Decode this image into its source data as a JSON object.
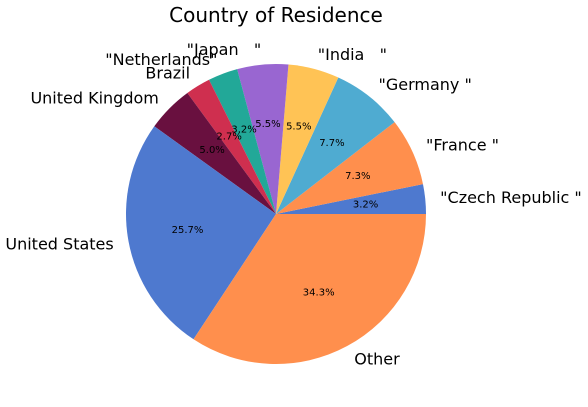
{
  "chart_data": {
    "type": "pie",
    "title": "Country of Residence",
    "start_angle_deg": 0,
    "direction": "counterclockwise",
    "slices": [
      {
        "label": "\"Czech Republic \"",
        "value": 3.2,
        "pct_label": "3.2%",
        "color": "#4e79cf"
      },
      {
        "label": "\"France \"",
        "value": 7.3,
        "pct_label": "7.3%",
        "color": "#ff8f4d"
      },
      {
        "label": "\"Germany \"",
        "value": 7.7,
        "pct_label": "7.7%",
        "color": "#4fabd1"
      },
      {
        "label": "\"India   \"",
        "value": 5.5,
        "pct_label": "5.5%",
        "color": "#ffc355"
      },
      {
        "label": "\"Japan   \"",
        "value": 5.5,
        "pct_label": "5.5%",
        "color": "#9966d1"
      },
      {
        "label": "\"Netherlands\"",
        "value": 3.2,
        "pct_label": "3.2%",
        "color": "#22a898"
      },
      {
        "label": "Brazil",
        "value": 2.7,
        "pct_label": "2.7%",
        "color": "#cf2f4f"
      },
      {
        "label": "United Kingdom",
        "value": 5.0,
        "pct_label": "5.0%",
        "color": "#69103f"
      },
      {
        "label": "United States",
        "value": 25.7,
        "pct_label": "25.7%",
        "color": "#4e79cf"
      },
      {
        "label": "Other",
        "value": 34.3,
        "pct_label": "34.3%",
        "color": "#ff8f4d"
      }
    ]
  }
}
